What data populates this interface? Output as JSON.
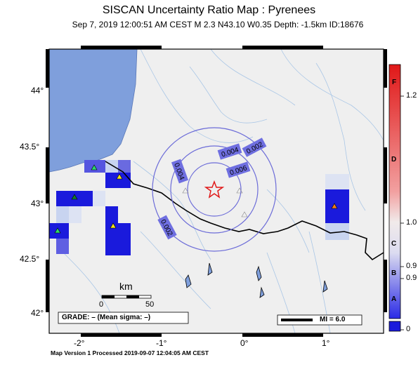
{
  "header": {
    "title": "SISCAN Uncertainty Ratio Map : Pyrenees",
    "subtitle": "Sep  7, 2019 12:00:51 AM CEST   M 2.3   N43.10 W0.35   Depth: -1.5km   ID:18676"
  },
  "axes": {
    "lat_ticks": [
      "44°",
      "43.5°",
      "43°",
      "42.5°",
      "42°"
    ],
    "lon_ticks": [
      "-2°",
      "-1°",
      "0°",
      "1°"
    ]
  },
  "contours": [
    "0.002",
    "0.004",
    "0.006",
    "0.004",
    "0.002"
  ],
  "scalebar": {
    "label": "km",
    "ticks": [
      "0",
      "50"
    ]
  },
  "grade_box": {
    "text": "GRADE: – (Mean sigma: –)"
  },
  "mi_box": {
    "text": "MI = 6.0"
  },
  "colorbar": {
    "grades": [
      "F",
      "D",
      "C",
      "B",
      "A"
    ],
    "values": [
      "1.2",
      "1.0",
      "0.9",
      "0.9",
      "0"
    ]
  },
  "footer": {
    "text": "Map Version 1 Processed 2019-09-07 12:04:05 AM CEST"
  },
  "colors": {
    "ocean": "#7f9fdc",
    "land": "#efefef",
    "cell_blue": "#1a1adc",
    "cell_light": "#c8d4f0",
    "contour": "#6c6cd8",
    "label_box": "#6f6fe0",
    "epicenter": "#e01818",
    "border": "#000000"
  }
}
